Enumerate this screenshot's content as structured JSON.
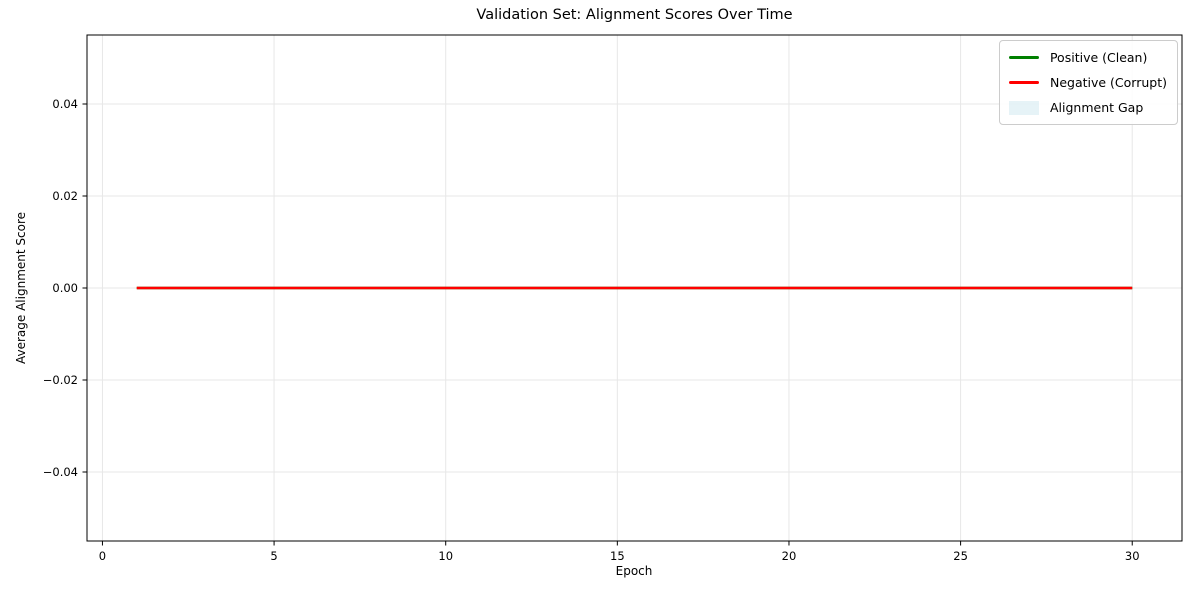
{
  "figure": {
    "title": "Validation Set: Alignment Scores Over Time",
    "xlabel": "Epoch",
    "ylabel": "Average Alignment Score"
  },
  "legend": {
    "position": "upper right",
    "items": [
      {
        "label": "Positive (Clean)",
        "color": "#008000",
        "alpha": 1,
        "swatch": "line"
      },
      {
        "label": "Negative (Corrupt)",
        "color": "#ff0000",
        "alpha": 1,
        "swatch": "line"
      },
      {
        "label": "Alignment Gap",
        "color": "#add8e6",
        "alpha": 0.3,
        "swatch": "patch"
      }
    ]
  },
  "chart_data": {
    "type": "line",
    "title": "Validation Set: Alignment Scores Over Time",
    "xlabel": "Epoch",
    "ylabel": "Average Alignment Score",
    "x": [
      1,
      2,
      3,
      4,
      5,
      6,
      7,
      8,
      9,
      10,
      11,
      12,
      13,
      14,
      15,
      16,
      17,
      18,
      19,
      20,
      21,
      22,
      23,
      24,
      25,
      26,
      27,
      28,
      29,
      30
    ],
    "series": [
      {
        "name": "Positive (Clean)",
        "color": "#008000",
        "values": [
          0,
          0,
          0,
          0,
          0,
          0,
          0,
          0,
          0,
          0,
          0,
          0,
          0,
          0,
          0,
          0,
          0,
          0,
          0,
          0,
          0,
          0,
          0,
          0,
          0,
          0,
          0,
          0,
          0,
          0
        ]
      },
      {
        "name": "Negative (Corrupt)",
        "color": "#ff0000",
        "values": [
          0,
          0,
          0,
          0,
          0,
          0,
          0,
          0,
          0,
          0,
          0,
          0,
          0,
          0,
          0,
          0,
          0,
          0,
          0,
          0,
          0,
          0,
          0,
          0,
          0,
          0,
          0,
          0,
          0,
          0
        ]
      }
    ],
    "fill_between": {
      "name": "Alignment Gap",
      "color": "#add8e6",
      "alpha": 0.3
    },
    "xlim": [
      -0.45,
      31.45
    ],
    "ylim": [
      -0.055,
      0.055
    ],
    "xticks": [
      0,
      5,
      10,
      15,
      20,
      25,
      30
    ],
    "yticks": [
      -0.04,
      -0.02,
      0.0,
      0.02,
      0.04
    ],
    "grid": true,
    "grid_color": "#e7e7e7",
    "legend_position": "upper right"
  }
}
